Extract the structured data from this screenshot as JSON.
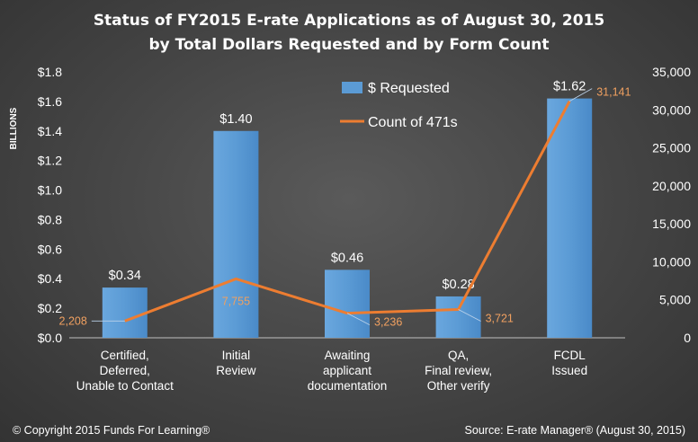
{
  "title_line1": "Status  of FY2015 E-rate  Applications  as of August 30, 2015",
  "title_line2": "by Total  Dollars  Requested  and by Form Count",
  "footer": {
    "copyright": "© Copyright 2015 Funds For Learning®",
    "source": "Source: E-rate Manager® (August 30, 2015)"
  },
  "colors": {
    "bar": "#5b9bd5",
    "line": "#ed7d31",
    "count_label": "#f0a060"
  },
  "chart_data": {
    "type": "bar",
    "categories": [
      [
        "Certified,",
        "Deferred,",
        "Unable to Contact"
      ],
      [
        "Initial",
        "Review"
      ],
      [
        "Awaiting",
        "applicant",
        "documentation"
      ],
      [
        "QA,",
        "Final review,",
        "Other verify"
      ],
      [
        "FCDL",
        "Issued"
      ]
    ],
    "ylabel": "BILLIONS",
    "y_left": {
      "min": 0,
      "max": 1.8,
      "step": 0.2,
      "ticks": [
        "$0.0",
        "$0.2",
        "$0.4",
        "$0.6",
        "$0.8",
        "$1.0",
        "$1.2",
        "$1.4",
        "$1.6",
        "$1.8"
      ]
    },
    "y_right": {
      "min": 0,
      "max": 35000,
      "step": 5000,
      "ticks": [
        "0",
        "5,000",
        "10,000",
        "15,000",
        "20,000",
        "25,000",
        "30,000",
        "35,000"
      ]
    },
    "legend_position": "top-right",
    "series": [
      {
        "name": "$ Requested",
        "kind": "bar",
        "axis": "left",
        "values": [
          0.34,
          1.4,
          0.46,
          0.28,
          1.62
        ],
        "labels": [
          "$0.34",
          "$1.40",
          "$0.46",
          "$0.28",
          "$1.62"
        ]
      },
      {
        "name": "Count of 471s",
        "kind": "line",
        "axis": "right",
        "values": [
          2208,
          7755,
          3236,
          3721,
          31141
        ],
        "labels": [
          "2,208",
          "7,755",
          "3,236",
          "3,721",
          "31,141"
        ]
      }
    ]
  }
}
